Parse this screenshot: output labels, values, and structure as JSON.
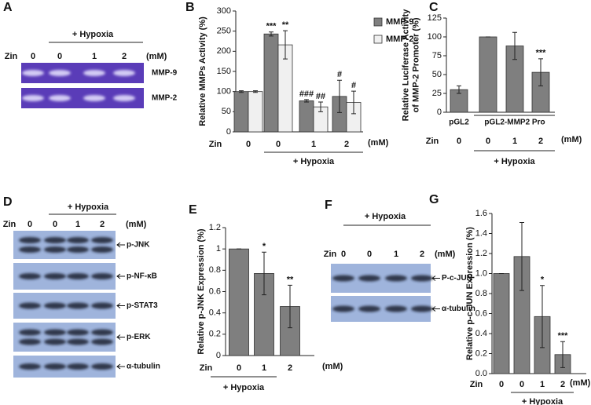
{
  "panel_labels": [
    "A",
    "B",
    "C",
    "D",
    "E",
    "F",
    "G"
  ],
  "blots": [
    {
      "group_label": "+ Hypoxia",
      "row_label": "Zin",
      "lanes": [
        "0",
        "0",
        "1",
        "2"
      ],
      "unit": "(mM)",
      "bands": [
        "MMP-9",
        "MMP-2"
      ]
    },
    {
      "group_label": "+ Hypoxia",
      "row_label": "Zin",
      "lanes": [
        "0",
        "0",
        "1",
        "2"
      ],
      "unit": "(mM)",
      "bands": [
        "p-JNK",
        "p-NF-κB",
        "p-STAT3",
        "p-ERK",
        "α-tubulin"
      ]
    },
    {
      "group_label": "+ Hypoxia",
      "row_label": "Zin",
      "lanes": [
        "0",
        "0",
        "1",
        "2"
      ],
      "unit": "(mM)",
      "bands": [
        "P-c-JUN",
        "α-tubulin"
      ]
    }
  ],
  "chart_data": [
    {
      "type": "bar",
      "y_label": [
        "Relative MMPs Activity (%)"
      ],
      "row_label": "Zin",
      "categories": [
        "0",
        "0",
        "1",
        "2"
      ],
      "unit": "(mM)",
      "group_label": "+ Hypoxia",
      "ylim": [
        0,
        300
      ],
      "yticks": [
        0,
        50,
        100,
        150,
        200,
        250,
        300
      ],
      "series": [
        {
          "name": "MMP-9",
          "color": "#7f7f7f",
          "values": [
            100,
            243,
            77,
            88
          ],
          "errors": [
            2,
            5,
            3,
            40
          ],
          "annotations": [
            null,
            "***",
            "###",
            "#"
          ]
        },
        {
          "name": "MMP-2",
          "color": "#f0f0f0",
          "values": [
            100,
            216,
            62,
            73
          ],
          "errors": [
            2,
            35,
            12,
            28
          ],
          "annotations": [
            null,
            "**",
            "##",
            "#"
          ]
        }
      ]
    },
    {
      "type": "bar",
      "y_label": [
        "Relative Luciferase Activity",
        "of MMP-2 Promoter (%)"
      ],
      "row_label": "Zin",
      "categories": [
        "0",
        "0",
        "1",
        "2"
      ],
      "unit": "(mM)",
      "group_label": "+ Hypoxia",
      "vector_labels": [
        "pGL2",
        "pGL2-MMP2 Pro"
      ],
      "ylim": [
        0,
        125
      ],
      "yticks": [
        0,
        25,
        50,
        75,
        100,
        125
      ],
      "series": [
        {
          "color": "#7f7f7f",
          "values": [
            30,
            100,
            88,
            53
          ],
          "errors": [
            5,
            0,
            18,
            18
          ],
          "annotations": [
            null,
            null,
            null,
            "***"
          ]
        }
      ]
    },
    {
      "type": "bar",
      "y_label": [
        "Relative p-JNK Expression (%)"
      ],
      "row_label": "Zin",
      "categories": [
        "0",
        "1",
        "2"
      ],
      "unit": "(mM)",
      "group_label": "+ Hypoxia",
      "ylim": [
        0,
        1.2
      ],
      "yticks": [
        0,
        0.2,
        0.4,
        0.6,
        0.8,
        1,
        1.2
      ],
      "series": [
        {
          "color": "#7f7f7f",
          "values": [
            1.0,
            0.77,
            0.46
          ],
          "errors": [
            0,
            0.2,
            0.2
          ],
          "annotations": [
            null,
            "*",
            "**"
          ]
        }
      ]
    },
    {
      "type": "bar",
      "y_label": [
        "Relative p-c-JUN Expression (%)"
      ],
      "row_label": "Zin",
      "categories": [
        "0",
        "0",
        "1",
        "2"
      ],
      "unit": "(mM)",
      "group_label": "+ Hypoxia",
      "ylim": [
        0,
        1.6
      ],
      "yticks": [
        {
          "value": 0,
          "label": "0.0"
        },
        0.2,
        0.4,
        0.6,
        0.8,
        {
          "value": 1,
          "label": "1.0"
        },
        1.2,
        1.4,
        1.6
      ],
      "series": [
        {
          "color": "#7f7f7f",
          "values": [
            1.0,
            1.17,
            0.57,
            0.19
          ],
          "errors": [
            0,
            0.34,
            0.31,
            0.13
          ],
          "annotations": [
            null,
            null,
            "*",
            "***"
          ]
        }
      ]
    }
  ]
}
